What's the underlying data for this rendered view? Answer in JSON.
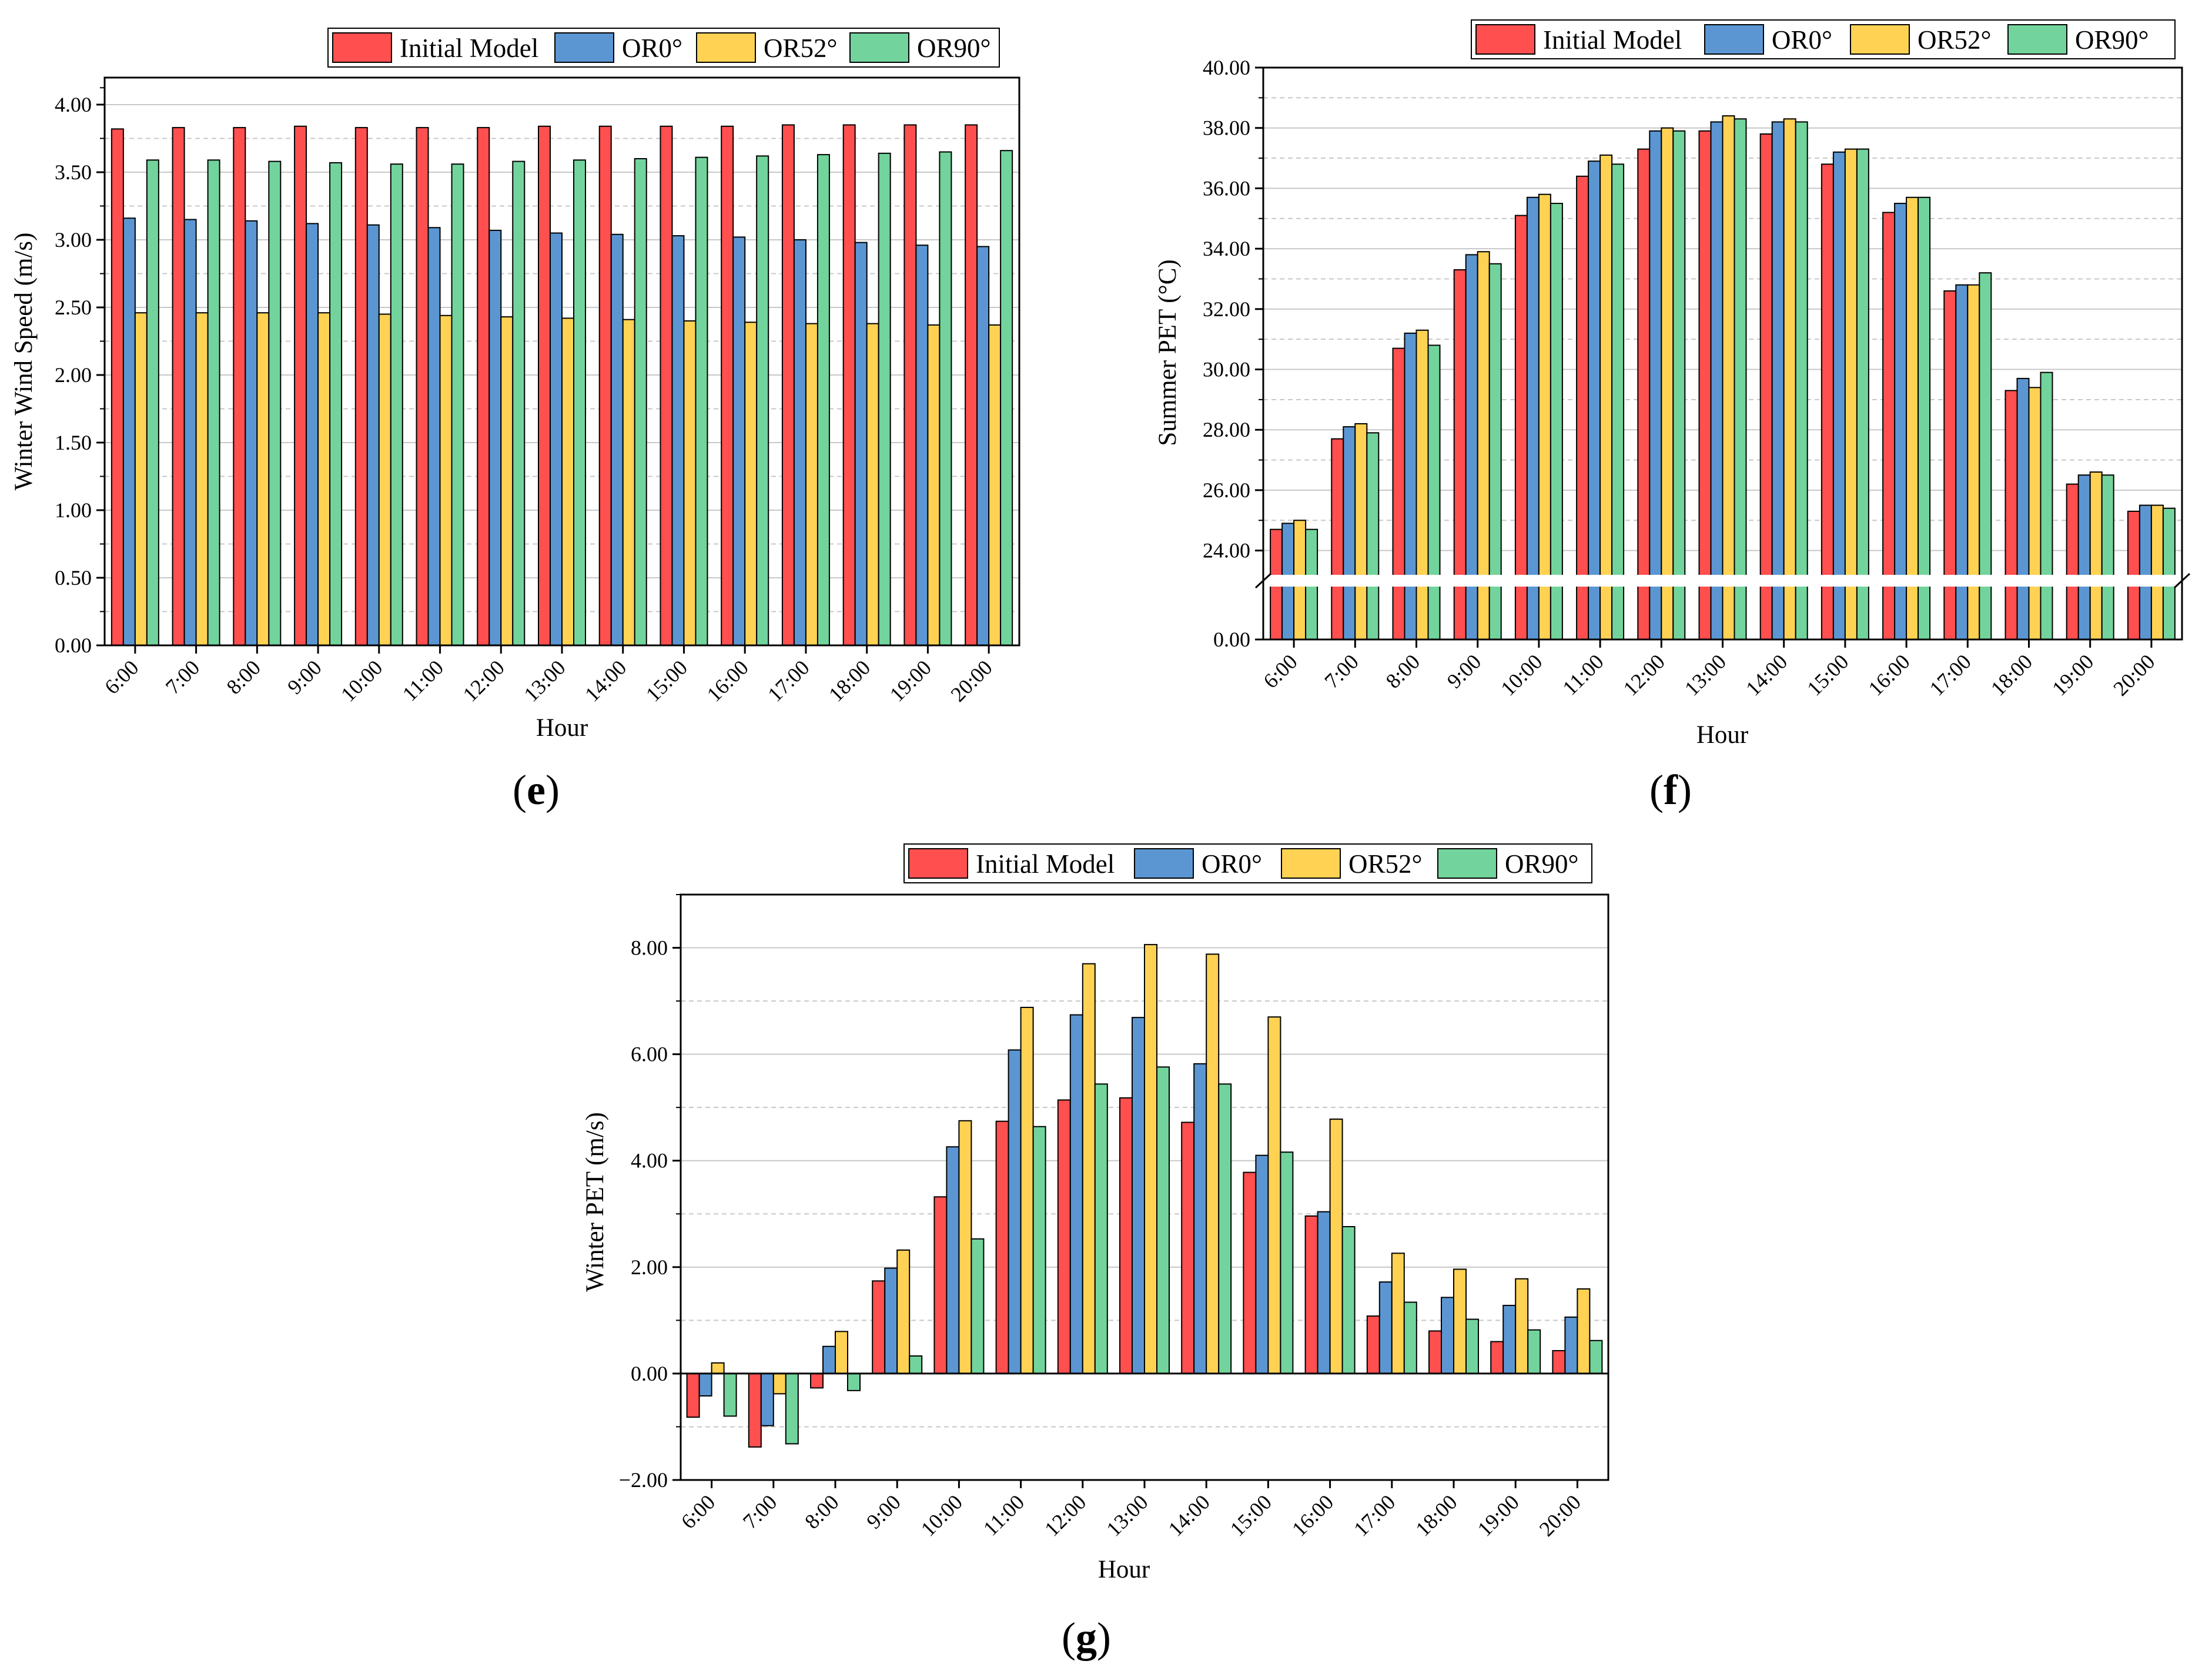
{
  "colors": {
    "initial": "#ff4f4f",
    "or0": "#5b96d2",
    "or52": "#ffd254",
    "or90": "#72d49c",
    "axis": "#000000",
    "grid": "#c8c8c8"
  },
  "legend": {
    "labels": [
      "Initial Model",
      "OR0°",
      "OR52°",
      "OR90°"
    ]
  },
  "chart_data": [
    {
      "id": "e",
      "type": "bar",
      "panel_label": "e",
      "xlabel": "Hour",
      "ylabel": "Winter Wind Speed (m/s)",
      "ylim": [
        0,
        4.2
      ],
      "yticks": [
        "0.00",
        "0.50",
        "1.00",
        "1.50",
        "2.00",
        "2.50",
        "3.00",
        "3.50",
        "4.00"
      ],
      "categories": [
        "6:00",
        "7:00",
        "8:00",
        "9:00",
        "10:00",
        "11:00",
        "12:00",
        "13:00",
        "14:00",
        "15:00",
        "16:00",
        "17:00",
        "18:00",
        "19:00",
        "20:00"
      ],
      "series": [
        {
          "name": "Initial Model",
          "values": [
            3.82,
            3.83,
            3.83,
            3.84,
            3.83,
            3.83,
            3.83,
            3.84,
            3.84,
            3.84,
            3.84,
            3.85,
            3.85,
            3.85,
            3.85
          ]
        },
        {
          "name": "OR0°",
          "values": [
            3.16,
            3.15,
            3.14,
            3.12,
            3.11,
            3.09,
            3.07,
            3.05,
            3.04,
            3.03,
            3.02,
            3.0,
            2.98,
            2.96,
            2.95
          ]
        },
        {
          "name": "OR52°",
          "values": [
            2.46,
            2.46,
            2.46,
            2.46,
            2.45,
            2.44,
            2.43,
            2.42,
            2.41,
            2.4,
            2.39,
            2.38,
            2.38,
            2.37,
            2.37
          ]
        },
        {
          "name": "OR90°",
          "values": [
            3.59,
            3.59,
            3.58,
            3.57,
            3.56,
            3.56,
            3.58,
            3.59,
            3.6,
            3.61,
            3.62,
            3.63,
            3.64,
            3.65,
            3.66
          ]
        }
      ]
    },
    {
      "id": "f",
      "type": "bar",
      "panel_label": "f",
      "xlabel": "Hour",
      "ylabel": "Summer PET (°C)",
      "ylim": [
        0,
        40
      ],
      "axis_break": [
        0.2,
        23
      ],
      "yticks": [
        "0.00",
        "24.00",
        "26.00",
        "28.00",
        "30.00",
        "32.00",
        "34.00",
        "36.00",
        "38.00",
        "40.00"
      ],
      "categories": [
        "6:00",
        "7:00",
        "8:00",
        "9:00",
        "10:00",
        "11:00",
        "12:00",
        "13:00",
        "14:00",
        "15:00",
        "16:00",
        "17:00",
        "18:00",
        "19:00",
        "20:00"
      ],
      "series": [
        {
          "name": "Initial Model",
          "values": [
            24.7,
            27.7,
            30.7,
            33.3,
            35.1,
            36.4,
            37.3,
            37.9,
            37.8,
            36.8,
            35.2,
            32.6,
            29.3,
            26.2,
            25.3
          ]
        },
        {
          "name": "OR0°",
          "values": [
            24.9,
            28.1,
            31.2,
            33.8,
            35.7,
            36.9,
            37.9,
            38.2,
            38.2,
            37.2,
            35.5,
            32.8,
            29.7,
            26.5,
            25.5
          ]
        },
        {
          "name": "OR52°",
          "values": [
            25.0,
            28.2,
            31.3,
            33.9,
            35.8,
            37.1,
            38.0,
            38.4,
            38.3,
            37.3,
            35.7,
            32.8,
            29.4,
            26.6,
            25.5
          ]
        },
        {
          "name": "OR90°",
          "values": [
            24.7,
            27.9,
            30.8,
            33.5,
            35.5,
            36.8,
            37.9,
            38.3,
            38.2,
            37.3,
            35.7,
            33.2,
            29.9,
            26.5,
            25.4
          ]
        }
      ]
    },
    {
      "id": "g",
      "type": "bar",
      "panel_label": "g",
      "xlabel": "Hour",
      "ylabel": "Winter PET (m/s)",
      "ylim": [
        -2,
        9
      ],
      "yticks": [
        "−2.00",
        "0.00",
        "2.00",
        "4.00",
        "6.00",
        "8.00"
      ],
      "categories": [
        "6:00",
        "7:00",
        "8:00",
        "9:00",
        "10:00",
        "11:00",
        "12:00",
        "13:00",
        "14:00",
        "15:00",
        "16:00",
        "17:00",
        "18:00",
        "19:00",
        "20:00"
      ],
      "series": [
        {
          "name": "Initial Model",
          "values": [
            -0.82,
            -1.38,
            -0.27,
            1.74,
            3.32,
            4.74,
            5.14,
            5.18,
            4.72,
            3.78,
            2.96,
            1.08,
            0.8,
            0.6,
            0.43
          ]
        },
        {
          "name": "OR0°",
          "values": [
            -0.42,
            -0.98,
            0.51,
            1.98,
            4.26,
            6.08,
            6.74,
            6.69,
            5.82,
            4.1,
            3.04,
            1.72,
            1.43,
            1.28,
            1.06
          ]
        },
        {
          "name": "OR52°",
          "values": [
            0.2,
            -0.38,
            0.79,
            2.32,
            4.75,
            6.88,
            7.7,
            8.06,
            7.88,
            6.7,
            4.78,
            2.26,
            1.96,
            1.78,
            1.59
          ]
        },
        {
          "name": "OR90°",
          "values": [
            -0.8,
            -1.32,
            -0.32,
            0.33,
            2.53,
            4.64,
            5.44,
            5.76,
            5.44,
            4.16,
            2.76,
            1.34,
            1.02,
            0.82,
            0.62
          ]
        }
      ]
    }
  ]
}
